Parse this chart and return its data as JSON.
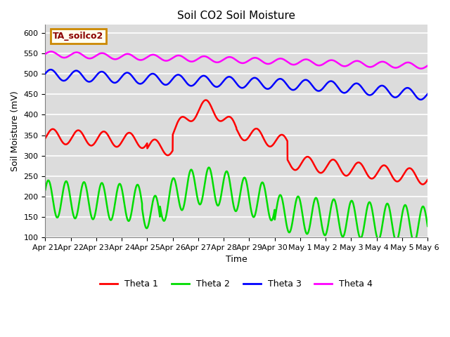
{
  "title": "Soil CO2 Soil Moisture",
  "xlabel": "Time",
  "ylabel": "Soil Moisture (mV)",
  "annotation": "TA_soilco2",
  "ylim": [
    100,
    620
  ],
  "yticks": [
    100,
    150,
    200,
    250,
    300,
    350,
    400,
    450,
    500,
    550,
    600
  ],
  "bg_color": "#dcdcdc",
  "line_colors": {
    "theta1": "#ff0000",
    "theta2": "#00dd00",
    "theta3": "#0000ff",
    "theta4": "#ff00ff"
  },
  "legend_labels": [
    "Theta 1",
    "Theta 2",
    "Theta 3",
    "Theta 4"
  ],
  "x_tick_labels": [
    "Apr 21",
    "Apr 22",
    "Apr 23",
    "Apr 24",
    "Apr 25",
    "Apr 26",
    "Apr 27",
    "Apr 28",
    "Apr 29",
    "Apr 30",
    "May 1",
    "May 2",
    "May 3",
    "May 4",
    "May 5",
    "May 6"
  ]
}
